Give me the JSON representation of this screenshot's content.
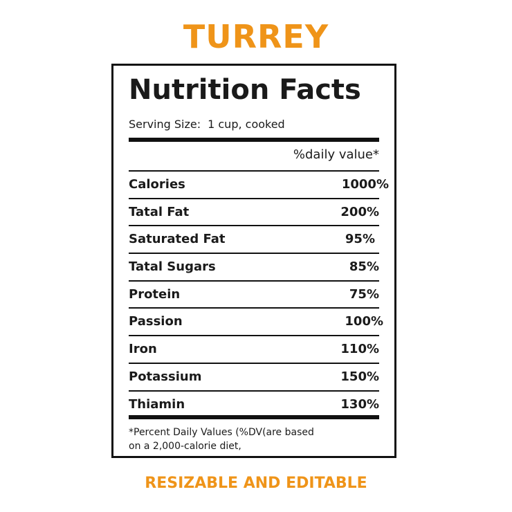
{
  "brand_title": "TURREY",
  "label": {
    "heading": "Nutrition Facts",
    "serving_label": "Serving Size:",
    "serving_value": "1 cup, cooked",
    "dv_header": "%daily value*",
    "nutrients": [
      {
        "name": "Calories",
        "value": "1000%"
      },
      {
        "name": "Tatal Fat",
        "value": "200%"
      },
      {
        "name": "Saturated Fat",
        "value": "95%"
      },
      {
        "name": "Tatal Sugars",
        "value": "85%"
      },
      {
        "name": "Protein",
        "value": "75%"
      },
      {
        "name": "Passion",
        "value": "100%"
      },
      {
        "name": "Iron",
        "value": "110%"
      },
      {
        "name": "Potassium",
        "value": "150%"
      },
      {
        "name": "Thiamin",
        "value": "130%"
      }
    ],
    "footnote_line1": "*Percent Daily Values (%DV(are  based",
    "footnote_line2": "on a 2,000-calorie diet,"
  },
  "subtitle": "RESIZABLE AND EDITABLE",
  "colors": {
    "accent": "#ef9419",
    "text": "#1a1a1a",
    "border": "#111111"
  }
}
